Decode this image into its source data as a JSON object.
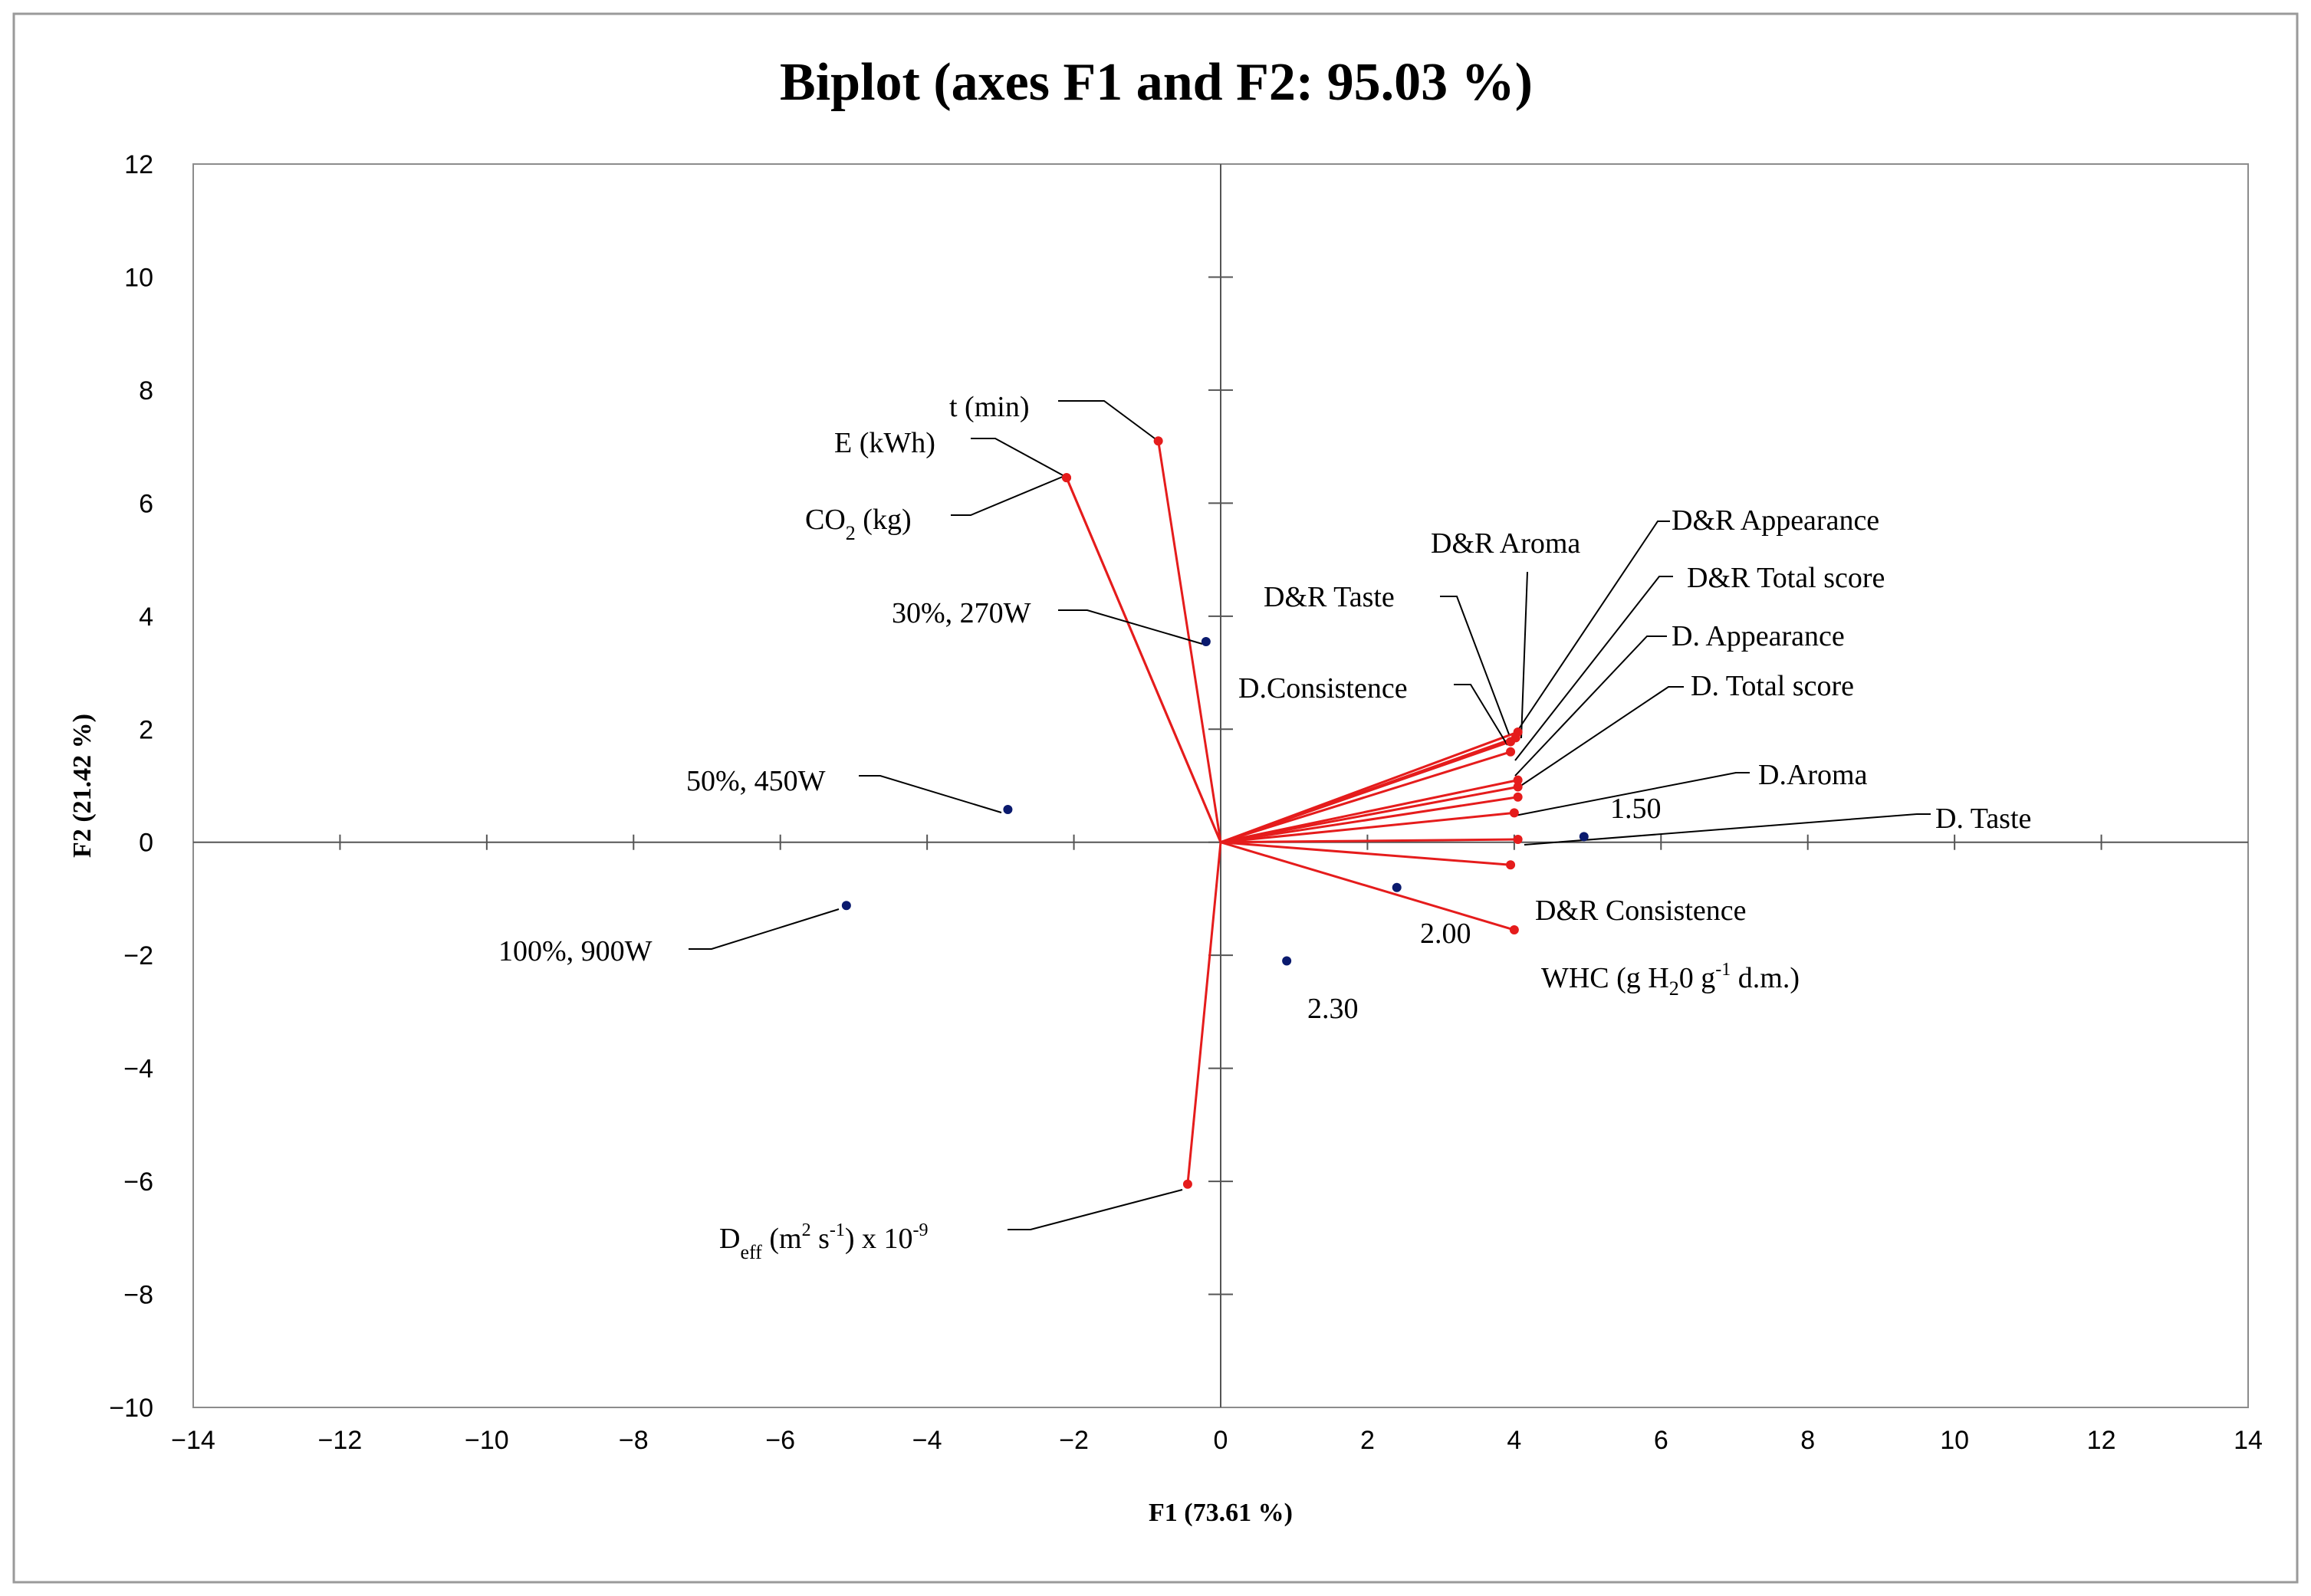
{
  "chart_data": {
    "type": "scatter",
    "title": "Biplot (axes F1 and F2: 95.03 %)",
    "xlabel": "F1 (73.61 %)",
    "ylabel": "F2 (21.42 %)",
    "xlim": [
      -14,
      14
    ],
    "ylim": [
      -10,
      12
    ],
    "xticks": [
      -14,
      -12,
      -10,
      -8,
      -6,
      -4,
      -2,
      0,
      2,
      4,
      6,
      8,
      10,
      12,
      14
    ],
    "yticks": [
      -10,
      -8,
      -6,
      -4,
      -2,
      0,
      2,
      4,
      6,
      8,
      10,
      12
    ],
    "colors": {
      "variables": "#e51c1c",
      "observations": "#0a1a6e",
      "leader": "#000000",
      "frame": "#8c8c8c",
      "axis": "#555555"
    },
    "variables": [
      {
        "name": "t (min)",
        "x": -0.85,
        "y": 7.1
      },
      {
        "name": "E (kWh)",
        "x": -2.1,
        "y": 6.45
      },
      {
        "name": "CO2 (kg)",
        "x": -2.1,
        "y": 6.45
      },
      {
        "name": "D&R Appearance",
        "x": 4.05,
        "y": 1.95
      },
      {
        "name": "D&R Aroma",
        "x": 4.02,
        "y": 1.85
      },
      {
        "name": "D&R Taste",
        "x": 3.95,
        "y": 1.78
      },
      {
        "name": "D&R Total score",
        "x": 4.05,
        "y": 1.1
      },
      {
        "name": "D. Appearance",
        "x": 4.05,
        "y": 0.98
      },
      {
        "name": "D.Consistence",
        "x": 3.95,
        "y": 1.6
      },
      {
        "name": "D. Total score",
        "x": 4.05,
        "y": 0.8
      },
      {
        "name": "D.Aroma",
        "x": 4.0,
        "y": 0.52
      },
      {
        "name": "D. Taste",
        "x": 4.05,
        "y": 0.05
      },
      {
        "name": "D&R Consistence",
        "x": 3.95,
        "y": -0.4
      },
      {
        "name": "WHC (g H2O g-1 d.m.)",
        "x": 4.0,
        "y": -1.55
      },
      {
        "name": "Deff (m2 s-1) x 10-9",
        "x": -0.45,
        "y": -6.05
      }
    ],
    "observations": [
      {
        "name": "30%, 270W",
        "x": -0.2,
        "y": 3.55
      },
      {
        "name": "50%, 450W",
        "x": -2.9,
        "y": 0.58
      },
      {
        "name": "100%, 900W",
        "x": -5.1,
        "y": -1.12
      },
      {
        "name": "1.50",
        "x": 4.95,
        "y": 0.1
      },
      {
        "name": "2.00",
        "x": 2.4,
        "y": -0.8
      },
      {
        "name": "2.30",
        "x": 0.9,
        "y": -2.1
      }
    ]
  },
  "labels": {
    "t_min": "t (min)",
    "e_kwh": "E (kWh)",
    "co2_main": "CO",
    "co2_sub": "2",
    "co2_rest": " (kg)",
    "dr_appearance": "D&R Appearance",
    "dr_aroma": "D&R Aroma",
    "dr_taste": "D&R Taste",
    "dr_total": "D&R Total score",
    "d_appearance": "D. Appearance",
    "d_consistence": "D.Consistence",
    "d_total": "D. Total score",
    "d_aroma": "D.Aroma",
    "d_taste": "D. Taste",
    "dr_consistence": "D&R Consistence",
    "whc_1": "WHC (g H",
    "whc_sub": "2",
    "whc_2": "0 g",
    "whc_sup": "-1",
    "whc_3": " d.m.)",
    "deff_main": "D",
    "deff_sub": "eff",
    "deff_1": "  (m",
    "deff_sup1": "2",
    "deff_2": " s",
    "deff_sup2": "-1",
    "deff_3": ") x 10",
    "deff_sup3": "-9",
    "obs_30": "30%, 270W",
    "obs_50": "50%, 450W",
    "obs_100": "100%, 900W",
    "obs_150": "1.50",
    "obs_200": "2.00",
    "obs_230": "2.30"
  }
}
